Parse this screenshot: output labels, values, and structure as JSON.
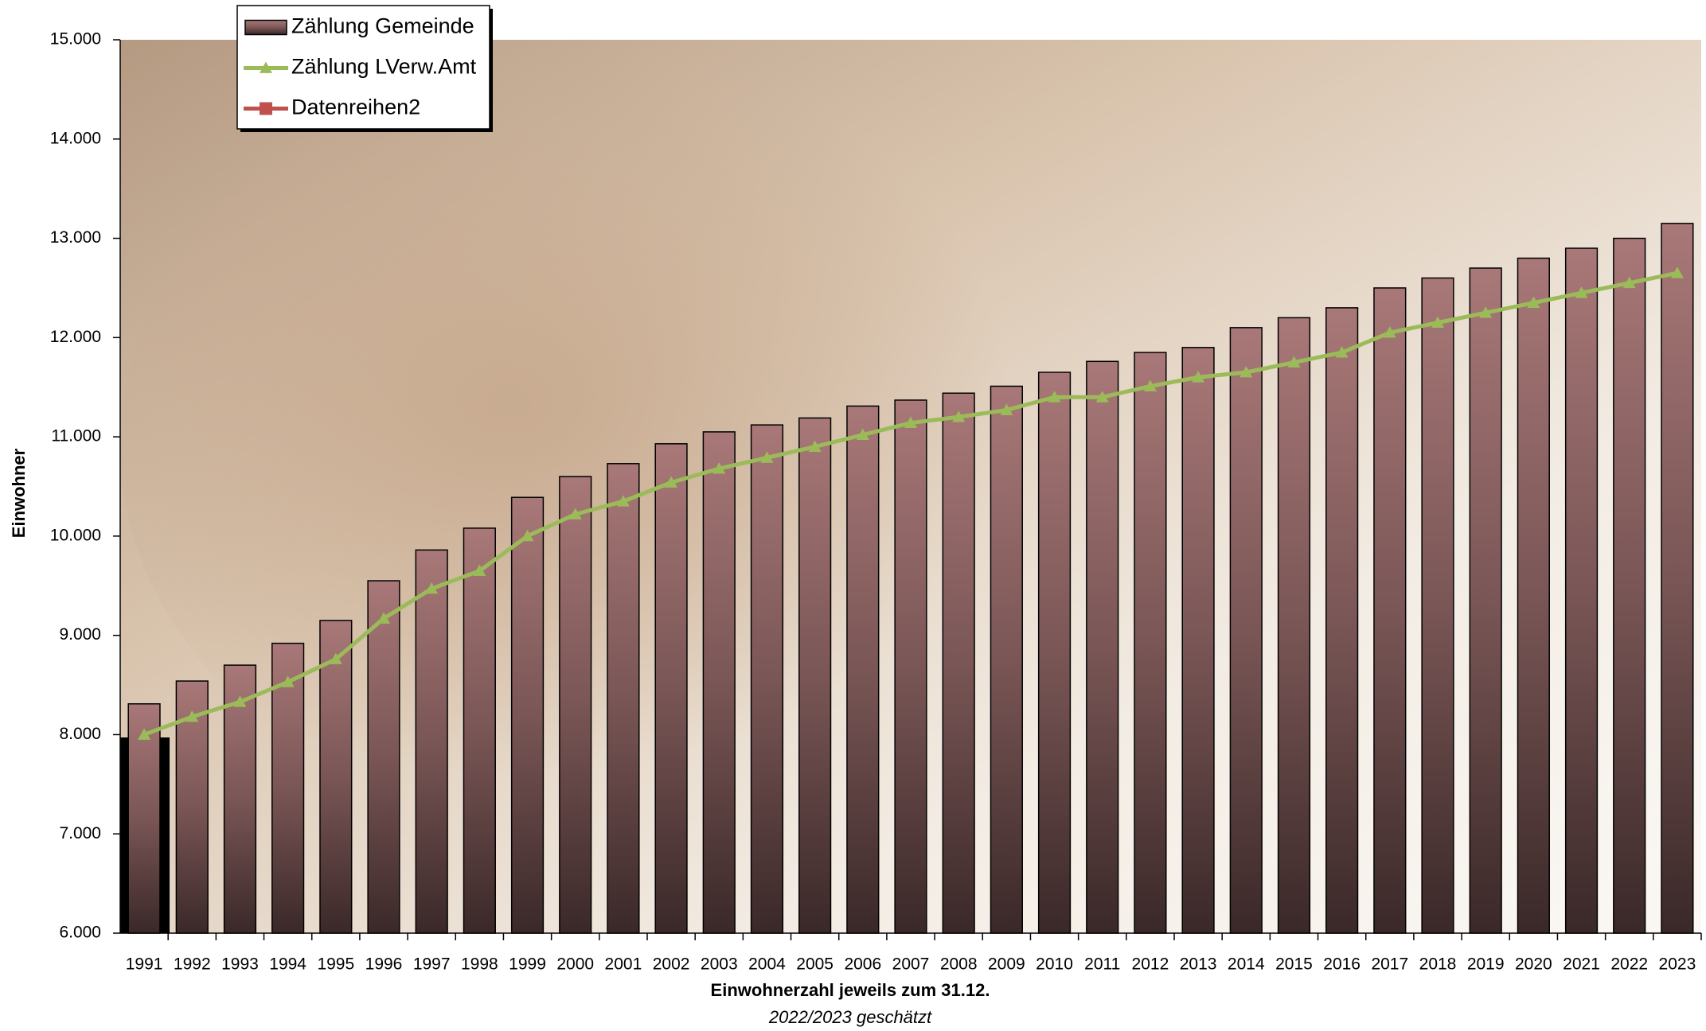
{
  "chart_data": {
    "type": "bar-line",
    "y_axis_label": "Einwohner",
    "x_axis_label": "Einwohnerzahl jeweils zum 31.12.",
    "subtitle": "2022/2023 geschätzt",
    "categories": [
      "1991",
      "1992",
      "1993",
      "1994",
      "1995",
      "1996",
      "1997",
      "1998",
      "1999",
      "2000",
      "2001",
      "2002",
      "2003",
      "2004",
      "2005",
      "2006",
      "2007",
      "2008",
      "2009",
      "2010",
      "2011",
      "2012",
      "2013",
      "2014",
      "2015",
      "2016",
      "2017",
      "2018",
      "2019",
      "2020",
      "2021",
      "2022",
      "2023"
    ],
    "series": [
      {
        "name": "Zählung Gemeinde",
        "type": "bar",
        "color": "#946666",
        "values": [
          8310,
          8540,
          8700,
          8920,
          9150,
          9550,
          9860,
          10080,
          10390,
          10600,
          10730,
          10930,
          11050,
          11120,
          11190,
          11310,
          11370,
          11440,
          11510,
          11650,
          11760,
          11850,
          11900,
          12100,
          12200,
          12300,
          12500,
          12600,
          12700,
          12800,
          12900,
          13000,
          13150
        ]
      },
      {
        "name": "Zählung LVerw.Amt",
        "type": "line",
        "marker": "triangle",
        "color": "#9bbb59",
        "values": [
          8000,
          8180,
          8330,
          8530,
          8760,
          9170,
          9470,
          9650,
          10000,
          10220,
          10350,
          10540,
          10680,
          10790,
          10900,
          11020,
          11140,
          11200,
          11270,
          11400,
          11400,
          11510,
          11600,
          11650,
          11750,
          11850,
          12050,
          12150,
          12250,
          12350,
          12450,
          12550,
          12650
        ]
      },
      {
        "name": "Datenreihen2",
        "type": "line",
        "marker": "square",
        "color": "#c0504d",
        "values": [
          null,
          null,
          null,
          null,
          null,
          null,
          null,
          null,
          null,
          null,
          null,
          null,
          null,
          null,
          null,
          null,
          null,
          null,
          null,
          null,
          null,
          null,
          null,
          null,
          null,
          null,
          null,
          null,
          null,
          null,
          null,
          null,
          null
        ]
      }
    ],
    "ylim": [
      6000,
      15000
    ],
    "yticks": [
      {
        "value": 6000,
        "label": "6.000"
      },
      {
        "value": 7000,
        "label": "7.000"
      },
      {
        "value": 8000,
        "label": "8.000"
      },
      {
        "value": 9000,
        "label": "9.000"
      },
      {
        "value": 10000,
        "label": "10.000"
      },
      {
        "value": 11000,
        "label": "11.000"
      },
      {
        "value": 12000,
        "label": "12.000"
      },
      {
        "value": 13000,
        "label": "13.000"
      },
      {
        "value": 14000,
        "label": "14.000"
      },
      {
        "value": 15000,
        "label": "15.000"
      }
    ],
    "legend": "top-left"
  }
}
